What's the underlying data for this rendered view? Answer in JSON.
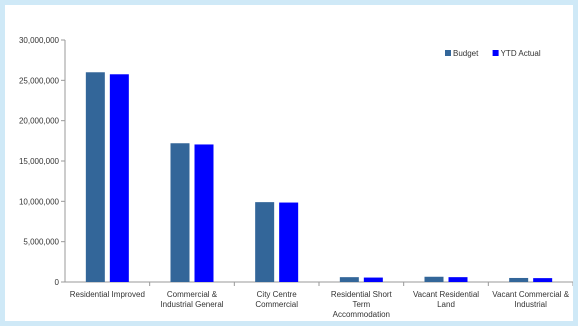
{
  "chart_data": {
    "type": "bar",
    "title": "",
    "xlabel": "",
    "ylabel": "",
    "ylim": [
      0,
      30000000
    ],
    "ytick_labels": [
      "0",
      "5,000,000",
      "10,000,000",
      "15,000,000",
      "20,000,000",
      "25,000,000",
      "30,000,000"
    ],
    "categories": [
      [
        "Residential Improved"
      ],
      [
        "Commercial &",
        "Industrial General"
      ],
      [
        "City Centre",
        "Commercial"
      ],
      [
        "Residential Short",
        "Term",
        "Accommodation"
      ],
      [
        "Vacant Residential",
        "Land"
      ],
      [
        "Vacant Commercial &",
        "Industrial"
      ]
    ],
    "series": [
      {
        "name": "Budget",
        "color": "#336699",
        "values": [
          26000000,
          17200000,
          9900000,
          600000,
          650000,
          500000
        ]
      },
      {
        "name": "YTD Actual",
        "color": "#0000ff",
        "values": [
          25750000,
          17050000,
          9850000,
          550000,
          600000,
          480000
        ]
      }
    ],
    "grid": false,
    "legend_position": "top-right"
  }
}
